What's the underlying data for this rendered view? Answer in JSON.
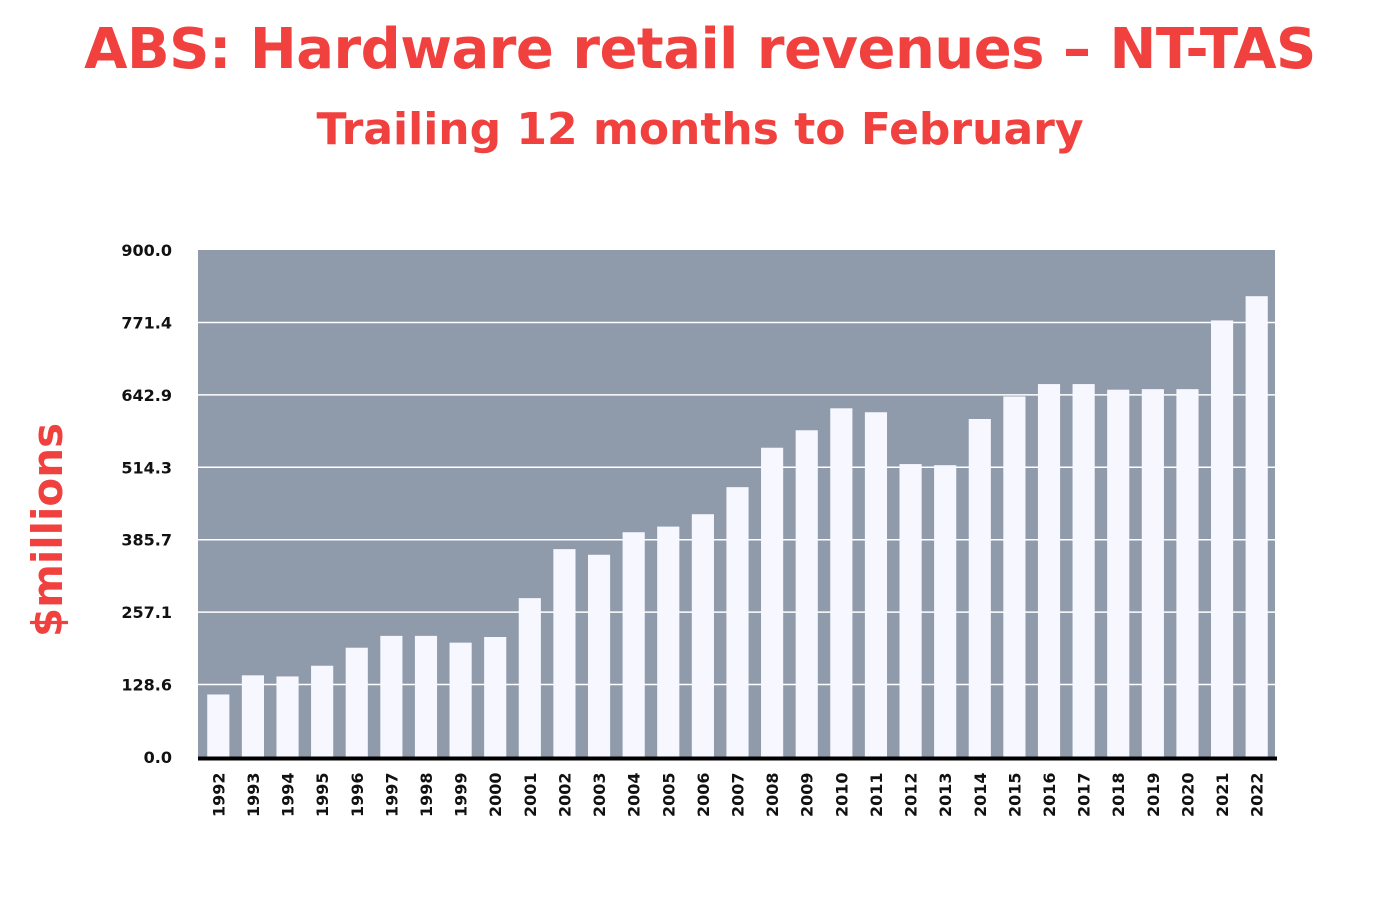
{
  "colors": {
    "title": "#f0413f",
    "plot_background": "#8f9aab",
    "bar": "#f7f8ff",
    "gridline": "#ffffff",
    "axis": "#000000",
    "tick_label": "#111111"
  },
  "chart_data": {
    "type": "bar",
    "title": "ABS: Hardware retail revenues – NT-TAS",
    "subtitle": "Trailing 12 months to February",
    "xlabel": "",
    "ylabel": "$millions",
    "ylim": [
      0,
      900
    ],
    "yticks": [
      0,
      128.6,
      257.1,
      385.7,
      514.3,
      642.9,
      771.4,
      900
    ],
    "ytick_labels": [
      "0.0",
      "128.6",
      "257.1",
      "385.7",
      "514.3",
      "642.9",
      "771.4",
      "900.0"
    ],
    "grid": true,
    "legend": "none",
    "categories": [
      "1992",
      "1993",
      "1994",
      "1995",
      "1996",
      "1997",
      "1998",
      "1999",
      "2000",
      "2001",
      "2002",
      "2003",
      "2004",
      "2005",
      "2006",
      "2007",
      "2008",
      "2009",
      "2010",
      "2011",
      "2012",
      "2013",
      "2014",
      "2015",
      "2016",
      "2017",
      "2018",
      "2019",
      "2020",
      "2021",
      "2022"
    ],
    "values": [
      111,
      145,
      143,
      162,
      194,
      215,
      215,
      203,
      213,
      282,
      369,
      359,
      399,
      409,
      431,
      479,
      549,
      580,
      619,
      612,
      520,
      518,
      600,
      640,
      662,
      662,
      652,
      653,
      653,
      775,
      818
    ]
  }
}
